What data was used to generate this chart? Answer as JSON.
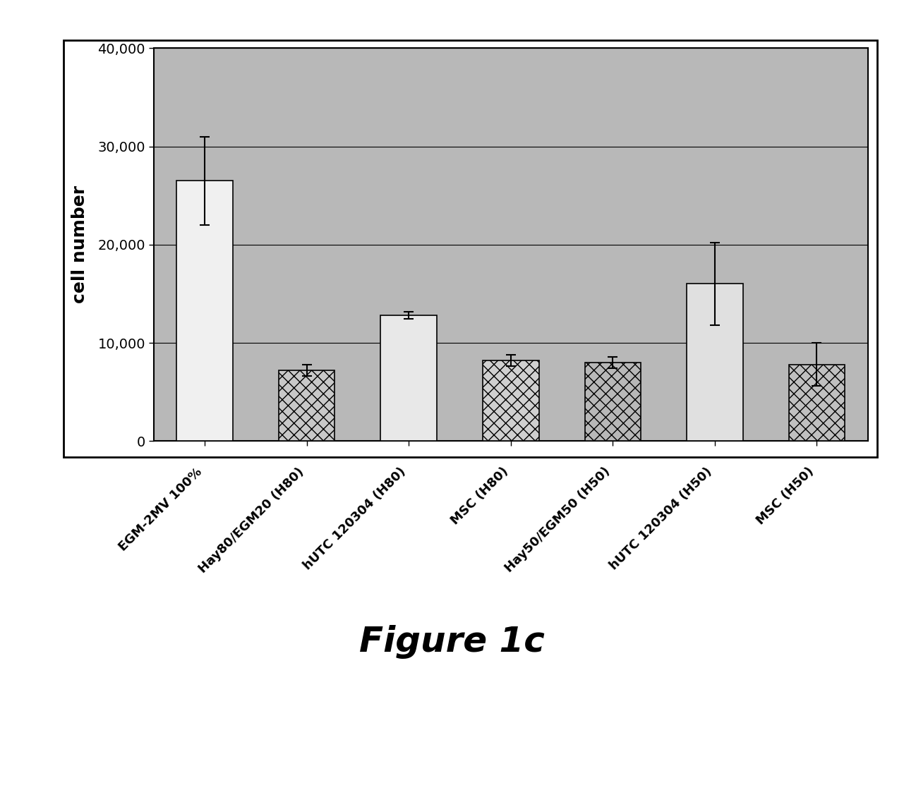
{
  "categories": [
    "EGM-2MV 100%",
    "Hay80/EGM20 (H80)",
    "hUTC 120304 (H80)",
    "MSC (H80)",
    "Hay50/EGM50 (H50)",
    "hUTC 120304 (H50)",
    "MSC (H50)"
  ],
  "values": [
    26500,
    7200,
    12800,
    8200,
    8000,
    16000,
    7800
  ],
  "errors": [
    4500,
    600,
    350,
    550,
    550,
    4200,
    2200
  ],
  "bar_colors": [
    "#f0f0f0",
    "#c8c8c8",
    "#e8e8e8",
    "#d0d0d0",
    "#b8b8b8",
    "#e0e0e0",
    "#c0c0c0"
  ],
  "bar_edgecolors": [
    "#000000",
    "#000000",
    "#000000",
    "#000000",
    "#000000",
    "#000000",
    "#000000"
  ],
  "hatch_patterns": [
    "",
    "xx",
    "",
    "xx",
    "xx",
    "",
    "xx"
  ],
  "ylabel": "cell number",
  "ylim": [
    0,
    40000
  ],
  "yticks": [
    0,
    10000,
    20000,
    30000,
    40000
  ],
  "ytick_labels": [
    "0",
    "10,000",
    "20,000",
    "30,000",
    "40,000"
  ],
  "figure_caption": "Figure 1c",
  "outer_bg_color": "#ffffff",
  "plot_bg_color": "#b8b8b8",
  "box_bg_color": "#ffffff",
  "grid_color": "#000000",
  "ylabel_fontsize": 18,
  "tick_fontsize": 14,
  "xtick_fontsize": 13,
  "caption_fontsize": 36
}
